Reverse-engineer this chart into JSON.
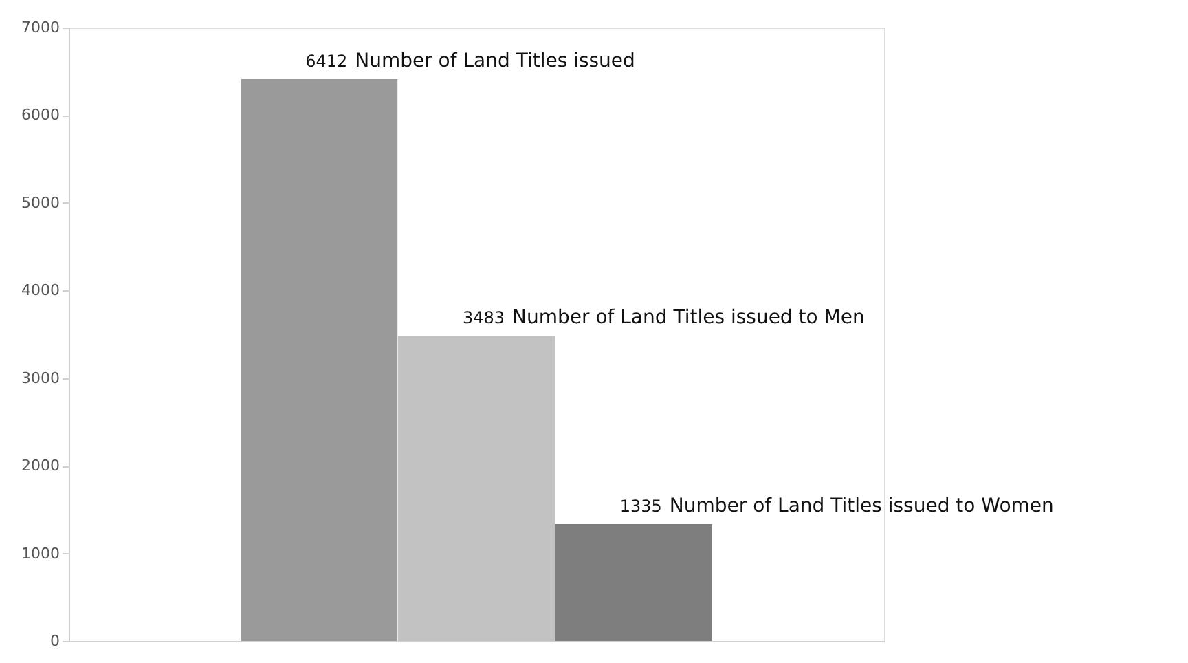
{
  "chart_data": {
    "type": "bar",
    "categories": [
      null
    ],
    "series": [
      {
        "name": "Number of Land Titles issued",
        "color": "#9a9a9a",
        "values": [
          6412
        ]
      },
      {
        "name": "Number of Land Titles issued to Men",
        "color": "#c2c2c2",
        "values": [
          3483
        ]
      },
      {
        "name": "Number of Land Titles issued to Women",
        "color": "#7e7e7e",
        "values": [
          1335
        ]
      }
    ],
    "ylim": [
      0,
      7000
    ],
    "yticks": [
      0,
      1000,
      2000,
      3000,
      4000,
      5000,
      6000,
      7000
    ],
    "grid": false,
    "data_labels": true
  }
}
